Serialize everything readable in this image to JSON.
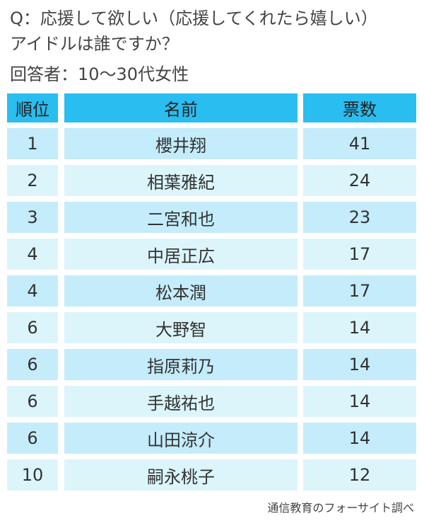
{
  "question_line1": "Q：応援して欲しい（応援してくれたら嬉しい）",
  "question_line2": "アイドルは誰ですか？",
  "respondents": "回答者：10～30代女性",
  "table": {
    "headers": [
      "順位",
      "名前",
      "票数"
    ],
    "rows": [
      {
        "rank": "1",
        "name": "櫻井翔",
        "votes": "41"
      },
      {
        "rank": "2",
        "name": "相葉雅紀",
        "votes": "24"
      },
      {
        "rank": "3",
        "name": "二宮和也",
        "votes": "23"
      },
      {
        "rank": "4",
        "name": "中居正広",
        "votes": "17"
      },
      {
        "rank": "4",
        "name": "松本潤",
        "votes": "17"
      },
      {
        "rank": "6",
        "name": "大野智",
        "votes": "14"
      },
      {
        "rank": "6",
        "name": "指原莉乃",
        "votes": "14"
      },
      {
        "rank": "6",
        "name": "手越祐也",
        "votes": "14"
      },
      {
        "rank": "6",
        "name": "山田涼介",
        "votes": "14"
      },
      {
        "rank": "10",
        "name": "嗣永桃子",
        "votes": "12"
      }
    ]
  },
  "source": "通信教育のフォーサイト調べ",
  "colors": {
    "header": "#29bdf0",
    "row_odd": "#c4ecfb",
    "row_even": "#dbf5fb"
  }
}
